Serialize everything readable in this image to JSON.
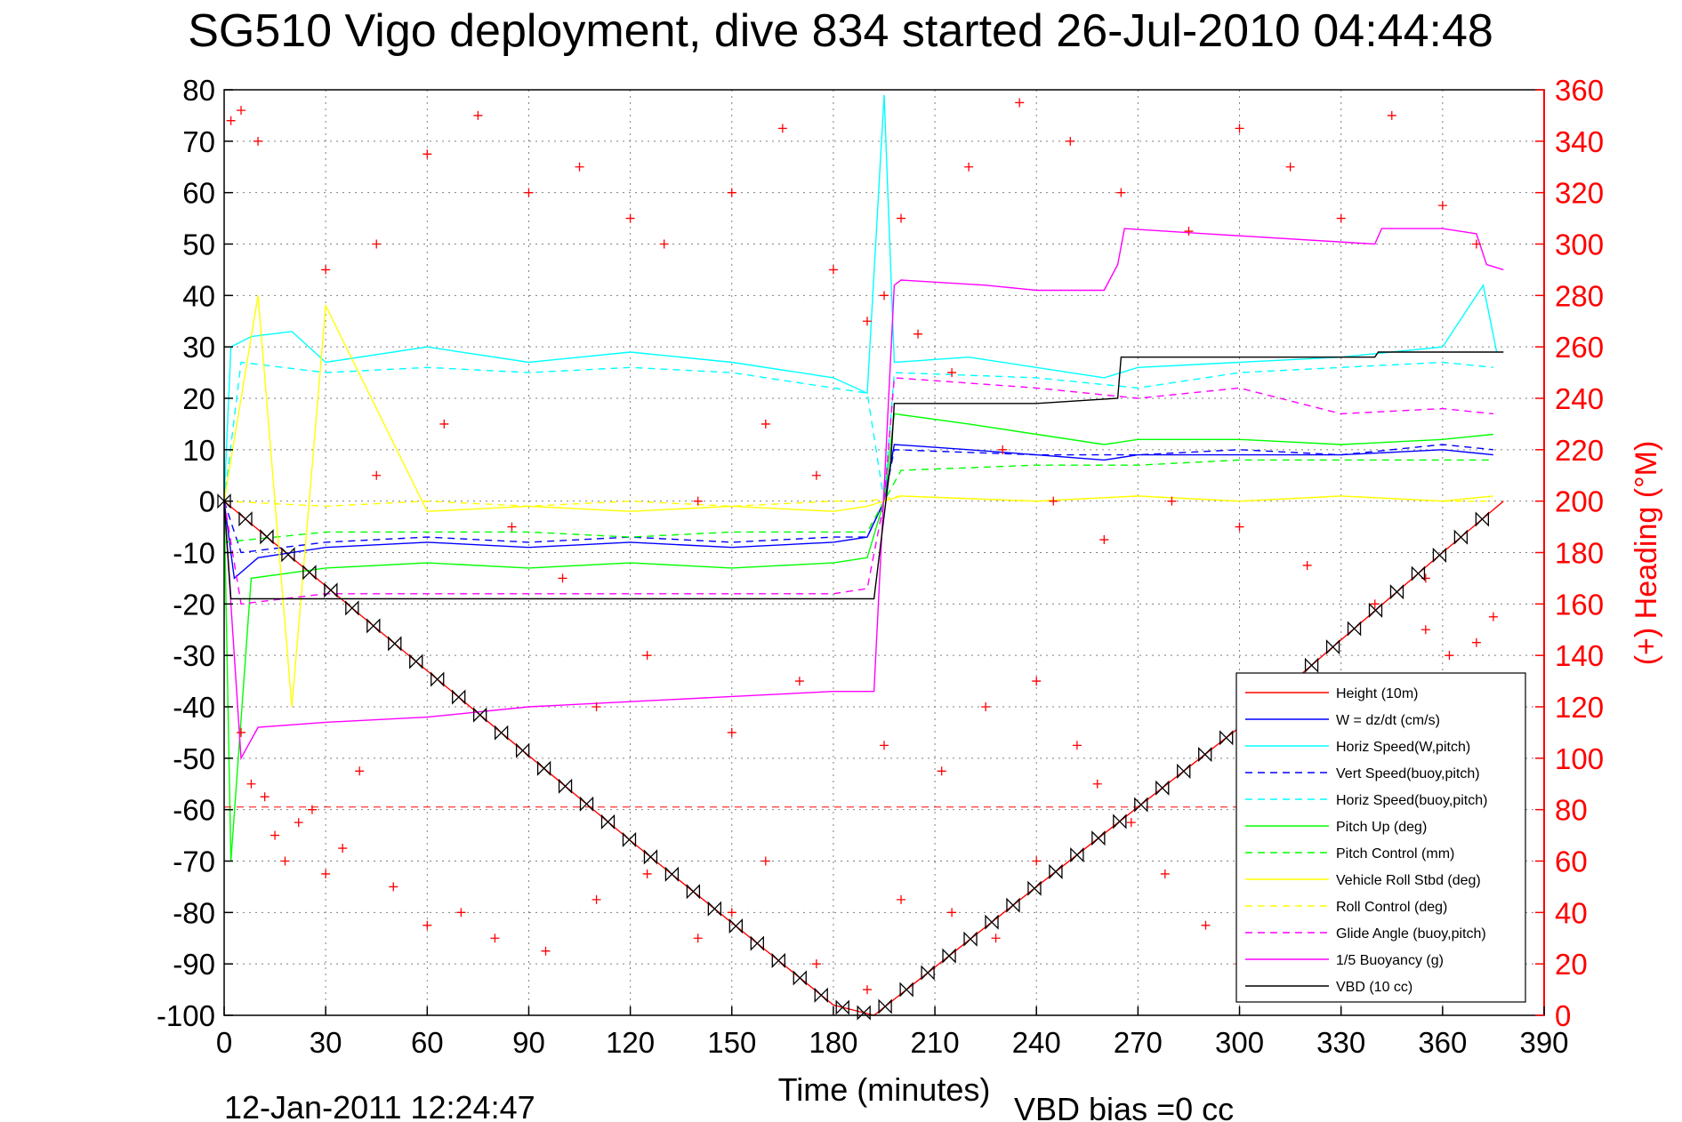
{
  "chart_data": {
    "type": "line",
    "title": "SG510 Vigo deployment, dive 834 started 26-Jul-2010 04:44:48",
    "xlabel": "Time (minutes)",
    "ylabel": "",
    "y2label": "(+) Heading (°M)",
    "xlim": [
      0,
      390
    ],
    "ylim": [
      -100,
      80
    ],
    "y2lim": [
      0,
      360
    ],
    "xticks": [
      "0",
      "30",
      "60",
      "90",
      "120",
      "150",
      "180",
      "210",
      "240",
      "270",
      "300",
      "330",
      "360",
      "390"
    ],
    "yticks": [
      "80",
      "70",
      "60",
      "50",
      "40",
      "30",
      "20",
      "10",
      "0",
      "-10",
      "-20",
      "-30",
      "-40",
      "-50",
      "-60",
      "-70",
      "-80",
      "-90",
      "-100"
    ],
    "y2ticks": [
      "360",
      "340",
      "320",
      "300",
      "280",
      "260",
      "240",
      "220",
      "200",
      "180",
      "160",
      "140",
      "120",
      "100",
      "80",
      "60",
      "40",
      "20",
      "0"
    ],
    "grid": true,
    "legend_position": "bottom-right",
    "footer_left": "12-Jan-2011 12:24:47",
    "footer_right": "VBD bias =0 cc",
    "series": [
      {
        "name": "Height (10m)",
        "color": "#ff0000",
        "style": "solid",
        "x": [
          0,
          60,
          120,
          180,
          192,
          240,
          300,
          360,
          378
        ],
        "y": [
          0,
          -33,
          -66,
          -98,
          -100,
          -75,
          -44,
          -10,
          0
        ]
      },
      {
        "name": "W = dz/dt (cm/s)",
        "color": "#0000ff",
        "style": "solid",
        "x": [
          0,
          3,
          10,
          30,
          60,
          90,
          120,
          150,
          180,
          190,
          195,
          198,
          220,
          240,
          260,
          270,
          300,
          330,
          360,
          375
        ],
        "y": [
          0,
          -15,
          -11,
          -9,
          -8,
          -9,
          -8,
          -9,
          -8,
          -7,
          0,
          11,
          10,
          9,
          8,
          9,
          9,
          9,
          10,
          9
        ]
      },
      {
        "name": "Horiz Speed(W,pitch)",
        "color": "#00ffff",
        "style": "solid",
        "x": [
          0,
          2,
          8,
          20,
          30,
          60,
          90,
          120,
          150,
          180,
          190,
          195,
          198,
          220,
          240,
          260,
          270,
          300,
          330,
          360,
          372,
          376
        ],
        "y": [
          0,
          30,
          32,
          33,
          27,
          30,
          27,
          29,
          27,
          24,
          21,
          79,
          27,
          28,
          26,
          24,
          26,
          27,
          28,
          30,
          42,
          29
        ]
      },
      {
        "name": "Vert Speed(buoy,pitch)",
        "color": "#0000ff",
        "style": "dashed",
        "x": [
          0,
          5,
          30,
          60,
          90,
          120,
          150,
          180,
          190,
          195,
          198,
          240,
          270,
          300,
          330,
          360,
          375
        ],
        "y": [
          0,
          -10,
          -8,
          -7,
          -8,
          -7,
          -8,
          -7,
          -7,
          0,
          10,
          9,
          9,
          10,
          9,
          11,
          10
        ]
      },
      {
        "name": "Horiz Speed(buoy,pitch)",
        "color": "#00ffff",
        "style": "dashed",
        "x": [
          0,
          5,
          30,
          60,
          90,
          120,
          150,
          180,
          190,
          195,
          198,
          240,
          270,
          300,
          330,
          360,
          375
        ],
        "y": [
          0,
          27,
          25,
          26,
          25,
          26,
          25,
          22,
          21,
          0,
          25,
          24,
          22,
          25,
          26,
          27,
          26
        ]
      },
      {
        "name": "Pitch Up (deg)",
        "color": "#00ff00",
        "style": "solid",
        "x": [
          0,
          2,
          8,
          30,
          60,
          90,
          120,
          150,
          180,
          190,
          195,
          198,
          220,
          240,
          260,
          270,
          300,
          330,
          360,
          375
        ],
        "y": [
          0,
          -70,
          -15,
          -13,
          -12,
          -13,
          -12,
          -13,
          -12,
          -11,
          0,
          17,
          15,
          13,
          11,
          12,
          12,
          11,
          12,
          13
        ]
      },
      {
        "name": "Pitch Control (mm)",
        "color": "#00ff00",
        "style": "dashed",
        "x": [
          0,
          30,
          60,
          90,
          120,
          150,
          180,
          190,
          195,
          200,
          240,
          270,
          300,
          330,
          360,
          375
        ],
        "y": [
          -8,
          -6,
          -6,
          -6,
          -7,
          -6,
          -6,
          -6,
          0,
          6,
          7,
          7,
          8,
          8,
          8,
          8
        ]
      },
      {
        "name": "Vehicle Roll Stbd (deg)",
        "color": "#ffff00",
        "style": "solid",
        "x": [
          0,
          10,
          20,
          30,
          60,
          90,
          120,
          150,
          180,
          190,
          195,
          200,
          240,
          270,
          300,
          330,
          360,
          375
        ],
        "y": [
          0,
          40,
          -40,
          38,
          -2,
          -1,
          -2,
          -1,
          -2,
          -1,
          0,
          1,
          0,
          1,
          0,
          1,
          0,
          1
        ]
      },
      {
        "name": "Roll Control (deg)",
        "color": "#ffff00",
        "style": "dashed",
        "x": [
          0,
          30,
          60,
          90,
          120,
          150,
          180,
          190,
          200,
          240,
          270,
          300,
          330,
          360,
          375
        ],
        "y": [
          0,
          -1,
          0,
          -1,
          0,
          -1,
          0,
          0,
          1,
          0,
          1,
          0,
          1,
          0,
          0
        ]
      },
      {
        "name": "Glide Angle (buoy,pitch)",
        "color": "#ff00ff",
        "style": "dashed",
        "x": [
          0,
          5,
          30,
          60,
          90,
          120,
          150,
          180,
          190,
          195,
          198,
          240,
          270,
          300,
          330,
          360,
          375
        ],
        "y": [
          0,
          -20,
          -18,
          -18,
          -18,
          -18,
          -18,
          -18,
          -17,
          0,
          24,
          22,
          20,
          22,
          17,
          18,
          17
        ]
      },
      {
        "name": "1/5 Buoyancy (g)",
        "color": "#ff00ff",
        "style": "solid",
        "x": [
          0,
          5,
          10,
          30,
          60,
          90,
          120,
          150,
          180,
          192,
          198,
          200,
          225,
          240,
          260,
          264,
          266,
          290,
          340,
          342,
          360,
          370,
          373,
          378
        ],
        "y": [
          0,
          -50,
          -44,
          -43,
          -42,
          -40,
          -39,
          -38,
          -37,
          -37,
          42,
          43,
          42,
          41,
          41,
          46,
          53,
          52,
          50,
          53,
          53,
          52,
          46,
          45
        ]
      },
      {
        "name": "VBD (10 cc)",
        "color": "#000000",
        "style": "solid",
        "x": [
          0,
          2,
          60,
          120,
          180,
          192,
          197,
          198,
          210,
          240,
          264,
          265,
          300,
          340,
          341,
          378
        ],
        "y": [
          0,
          -19,
          -19,
          -19,
          -19,
          -19,
          8,
          19,
          19,
          19,
          20,
          28,
          28,
          28,
          29,
          29
        ]
      }
    ],
    "heading_series": {
      "name": "(+) Heading",
      "color": "#ff0000",
      "axis": "y2",
      "points": [
        [
          2,
          348
        ],
        [
          5,
          352
        ],
        [
          10,
          340
        ],
        [
          30,
          290
        ],
        [
          45,
          300
        ],
        [
          60,
          335
        ],
        [
          75,
          350
        ],
        [
          90,
          320
        ],
        [
          105,
          330
        ],
        [
          120,
          310
        ],
        [
          130,
          300
        ],
        [
          150,
          320
        ],
        [
          165,
          345
        ],
        [
          180,
          290
        ],
        [
          195,
          280
        ],
        [
          200,
          310
        ],
        [
          220,
          330
        ],
        [
          235,
          355
        ],
        [
          250,
          340
        ],
        [
          265,
          320
        ],
        [
          285,
          305
        ],
        [
          300,
          345
        ],
        [
          315,
          330
        ],
        [
          330,
          310
        ],
        [
          345,
          350
        ],
        [
          360,
          315
        ],
        [
          370,
          300
        ],
        [
          5,
          110
        ],
        [
          8,
          90
        ],
        [
          12,
          85
        ],
        [
          15,
          70
        ],
        [
          18,
          60
        ],
        [
          22,
          75
        ],
        [
          26,
          80
        ],
        [
          30,
          55
        ],
        [
          35,
          65
        ],
        [
          40,
          95
        ],
        [
          50,
          50
        ],
        [
          60,
          35
        ],
        [
          70,
          40
        ],
        [
          80,
          30
        ],
        [
          95,
          25
        ],
        [
          110,
          45
        ],
        [
          125,
          55
        ],
        [
          140,
          30
        ],
        [
          150,
          40
        ],
        [
          160,
          60
        ],
        [
          175,
          20
        ],
        [
          190,
          10
        ],
        [
          200,
          45
        ],
        [
          212,
          95
        ],
        [
          215,
          40
        ],
        [
          228,
          30
        ],
        [
          240,
          60
        ],
        [
          252,
          105
        ],
        [
          258,
          90
        ],
        [
          268,
          75
        ],
        [
          278,
          55
        ],
        [
          290,
          35
        ],
        [
          300,
          20
        ],
        [
          310,
          60
        ],
        [
          320,
          40
        ],
        [
          335,
          70
        ],
        [
          345,
          85
        ],
        [
          355,
          150
        ],
        [
          362,
          140
        ],
        [
          368,
          120
        ],
        [
          375,
          155
        ],
        [
          190,
          270
        ],
        [
          205,
          265
        ],
        [
          215,
          250
        ],
        [
          230,
          220
        ],
        [
          245,
          200
        ],
        [
          260,
          185
        ],
        [
          280,
          200
        ],
        [
          300,
          190
        ],
        [
          320,
          175
        ],
        [
          340,
          160
        ],
        [
          355,
          170
        ],
        [
          370,
          145
        ],
        [
          45,
          210
        ],
        [
          65,
          230
        ],
        [
          85,
          190
        ],
        [
          100,
          170
        ],
        [
          140,
          200
        ],
        [
          160,
          230
        ],
        [
          175,
          210
        ],
        [
          110,
          120
        ],
        [
          125,
          140
        ],
        [
          150,
          110
        ],
        [
          170,
          130
        ],
        [
          195,
          105
        ],
        [
          225,
          120
        ],
        [
          240,
          130
        ]
      ]
    },
    "heading_mean": 81
  }
}
